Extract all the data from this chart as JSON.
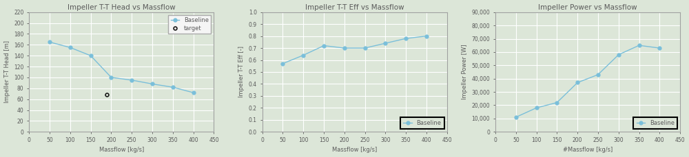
{
  "chart1": {
    "title": "Impeller T-T Head vs Massflow",
    "xlabel": "Massflow [kg/s]",
    "ylabel": "Impeller T-T Head [m]",
    "xlim": [
      0,
      450
    ],
    "ylim": [
      0,
      220
    ],
    "xticks": [
      0,
      50,
      100,
      150,
      200,
      250,
      300,
      350,
      400,
      450
    ],
    "yticks": [
      0,
      20,
      40,
      60,
      80,
      100,
      120,
      140,
      160,
      180,
      200,
      220
    ],
    "baseline_x": [
      50,
      100,
      150,
      200,
      250,
      300,
      350,
      400
    ],
    "baseline_y": [
      165,
      155,
      140,
      100,
      95,
      88,
      82,
      72
    ],
    "target_x": [
      190
    ],
    "target_y": [
      68
    ]
  },
  "chart2": {
    "title": "Impeller T-T Eff vs Massflow",
    "xlabel": "Massflow [kg/s]",
    "ylabel": "Impeller T-T Eff [-]",
    "xlim": [
      0,
      450
    ],
    "ylim": [
      0.0,
      1.0
    ],
    "xticks": [
      0,
      50,
      100,
      150,
      200,
      250,
      300,
      350,
      400,
      450
    ],
    "yticks": [
      0.0,
      0.1,
      0.2,
      0.3,
      0.4,
      0.5,
      0.6,
      0.7,
      0.8,
      0.9,
      1.0
    ],
    "baseline_x": [
      50,
      100,
      150,
      200,
      250,
      300,
      350,
      400
    ],
    "baseline_y": [
      0.57,
      0.64,
      0.72,
      0.7,
      0.7,
      0.74,
      0.78,
      0.8
    ]
  },
  "chart3": {
    "title": "Impeller Power vs Massflow",
    "xlabel": "#Massflow [kg/s]",
    "ylabel": "Impeller Power [W]",
    "xlim": [
      0,
      450
    ],
    "ylim": [
      0,
      90000
    ],
    "xticks": [
      0,
      50,
      100,
      150,
      200,
      250,
      300,
      350,
      400,
      450
    ],
    "yticks": [
      0,
      10000,
      20000,
      30000,
      40000,
      50000,
      60000,
      70000,
      80000,
      90000
    ],
    "baseline_x": [
      50,
      100,
      150,
      200,
      250,
      300,
      350,
      400
    ],
    "baseline_y": [
      11000,
      18000,
      22000,
      37000,
      43000,
      58000,
      65000,
      63000
    ]
  },
  "line_color": "#7abfda",
  "marker_size": 3.5,
  "target_color": "#1a1a1a",
  "plot_bg_color": "#dce6d8",
  "fig_bg_color": "#dce6d8",
  "grid_color": "#ffffff",
  "axis_color": "#a0a0a0",
  "text_color": "#595959",
  "title_fontsize": 7.5,
  "label_fontsize": 6,
  "tick_fontsize": 5.5,
  "legend_fontsize": 6
}
